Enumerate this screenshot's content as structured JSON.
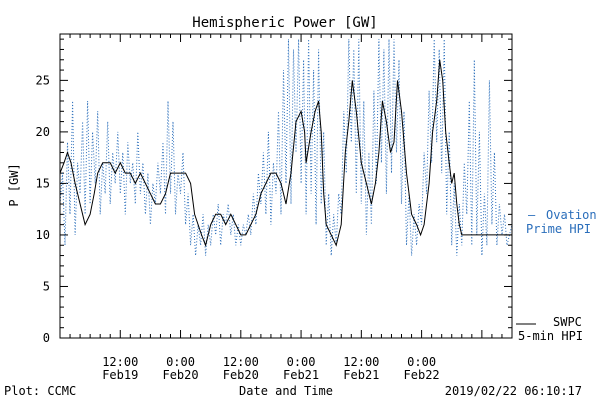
{
  "chart_data": {
    "type": "line",
    "title": "Hemispheric Power [GW]",
    "ylabel": "P [GW]",
    "xlabel": "Date and Time",
    "ylim": [
      0,
      29.5
    ],
    "yticks": [
      0,
      5,
      10,
      15,
      20,
      25
    ],
    "xlim_hours": [
      0,
      90
    ],
    "xticks": [
      {
        "hour": 12,
        "time": "12:00",
        "date": "Feb19"
      },
      {
        "hour": 24,
        "time": "0:00",
        "date": "Feb20"
      },
      {
        "hour": 36,
        "time": "12:00",
        "date": "Feb20"
      },
      {
        "hour": 48,
        "time": "0:00",
        "date": "Feb21"
      },
      {
        "hour": 60,
        "time": "12:00",
        "date": "Feb21"
      },
      {
        "hour": 72,
        "time": "0:00",
        "date": "Feb22"
      }
    ],
    "series": [
      {
        "name": "SWPC 5-min HPI",
        "label_line1": "SWPC",
        "label_line2": "5-min HPI",
        "color": "#000000",
        "style": "solid",
        "points": [
          [
            0,
            16
          ],
          [
            0.8,
            17
          ],
          [
            1.5,
            18
          ],
          [
            2.2,
            17
          ],
          [
            3,
            15
          ],
          [
            4,
            13
          ],
          [
            5,
            11
          ],
          [
            6,
            12
          ],
          [
            6.8,
            14
          ],
          [
            7.5,
            16
          ],
          [
            8.5,
            17
          ],
          [
            10,
            17
          ],
          [
            11,
            16
          ],
          [
            12,
            17
          ],
          [
            13,
            16
          ],
          [
            14,
            16
          ],
          [
            15,
            15
          ],
          [
            16,
            16
          ],
          [
            17,
            15
          ],
          [
            18,
            14
          ],
          [
            19,
            13
          ],
          [
            20,
            13
          ],
          [
            21,
            14
          ],
          [
            22,
            16
          ],
          [
            23,
            16
          ],
          [
            24,
            16
          ],
          [
            25,
            16
          ],
          [
            26,
            15
          ],
          [
            26.8,
            12
          ],
          [
            27.5,
            11
          ],
          [
            28.2,
            10
          ],
          [
            29,
            9
          ],
          [
            30,
            11
          ],
          [
            31,
            12
          ],
          [
            32,
            12
          ],
          [
            33,
            11
          ],
          [
            34,
            12
          ],
          [
            35,
            11
          ],
          [
            36,
            10
          ],
          [
            37,
            10
          ],
          [
            38,
            11
          ],
          [
            39,
            12
          ],
          [
            40,
            14
          ],
          [
            41,
            15
          ],
          [
            42,
            16
          ],
          [
            43,
            16
          ],
          [
            44,
            15
          ],
          [
            45,
            13
          ],
          [
            46,
            16
          ],
          [
            47,
            21
          ],
          [
            48,
            22
          ],
          [
            48.7,
            20
          ],
          [
            49,
            17
          ],
          [
            50,
            20
          ],
          [
            50.8,
            22
          ],
          [
            51.5,
            23
          ],
          [
            52,
            20
          ],
          [
            52.5,
            14
          ],
          [
            53,
            11
          ],
          [
            54,
            10
          ],
          [
            55,
            9
          ],
          [
            56,
            11
          ],
          [
            56.8,
            18
          ],
          [
            57.5,
            21
          ],
          [
            58.2,
            25
          ],
          [
            59,
            22
          ],
          [
            60,
            17
          ],
          [
            61,
            15
          ],
          [
            62,
            13
          ],
          [
            62.8,
            15
          ],
          [
            63.5,
            18
          ],
          [
            64.2,
            23
          ],
          [
            65,
            21
          ],
          [
            65.8,
            18
          ],
          [
            66.5,
            19
          ],
          [
            67.2,
            25
          ],
          [
            68,
            22
          ],
          [
            69,
            16
          ],
          [
            70,
            12
          ],
          [
            71,
            11
          ],
          [
            71.8,
            10
          ],
          [
            72.5,
            11
          ],
          [
            73.5,
            15
          ],
          [
            74.2,
            20
          ],
          [
            75,
            23
          ],
          [
            75.6,
            27
          ],
          [
            76.2,
            25
          ],
          [
            76.8,
            20
          ],
          [
            77.5,
            17
          ],
          [
            78,
            15
          ],
          [
            78.5,
            16
          ],
          [
            79,
            13
          ],
          [
            79.5,
            11
          ],
          [
            80,
            10
          ],
          [
            81,
            10
          ],
          [
            84,
            10
          ],
          [
            90,
            10
          ]
        ]
      },
      {
        "name": "Ovation Prime HPI",
        "label_line1": "Ovation",
        "label_line2": "Prime HPI",
        "color": "#2a6ebb",
        "style": "dotted",
        "points": [
          [
            0,
            13
          ],
          [
            0.5,
            16
          ],
          [
            1,
            9
          ],
          [
            1.5,
            19
          ],
          [
            2,
            12
          ],
          [
            2.5,
            23
          ],
          [
            3,
            10
          ],
          [
            3.5,
            17
          ],
          [
            4,
            14
          ],
          [
            4.5,
            21
          ],
          [
            5,
            12
          ],
          [
            5.5,
            23
          ],
          [
            6,
            13
          ],
          [
            6.5,
            20
          ],
          [
            7,
            15
          ],
          [
            7.5,
            22
          ],
          [
            8,
            12
          ],
          [
            8.5,
            17
          ],
          [
            9,
            14
          ],
          [
            9.5,
            21
          ],
          [
            10,
            13
          ],
          [
            10.5,
            18
          ],
          [
            11,
            15
          ],
          [
            11.5,
            20
          ],
          [
            12,
            14
          ],
          [
            12.5,
            18
          ],
          [
            13,
            12
          ],
          [
            13.5,
            19
          ],
          [
            14,
            15
          ],
          [
            14.5,
            17
          ],
          [
            15,
            13
          ],
          [
            15.5,
            20
          ],
          [
            16,
            14
          ],
          [
            16.5,
            17
          ],
          [
            17,
            12
          ],
          [
            17.5,
            16
          ],
          [
            18,
            11
          ],
          [
            18.5,
            15
          ],
          [
            19,
            13
          ],
          [
            19.5,
            17
          ],
          [
            20,
            14
          ],
          [
            20.5,
            19
          ],
          [
            21,
            12
          ],
          [
            21.5,
            23
          ],
          [
            22,
            14
          ],
          [
            22.5,
            21
          ],
          [
            23,
            12
          ],
          [
            23.5,
            16
          ],
          [
            24,
            14
          ],
          [
            24.5,
            18
          ],
          [
            25,
            11
          ],
          [
            25.5,
            14
          ],
          [
            26,
            9
          ],
          [
            26.5,
            12
          ],
          [
            27,
            8
          ],
          [
            27.5,
            11
          ],
          [
            28,
            9
          ],
          [
            28.5,
            12
          ],
          [
            29,
            8
          ],
          [
            29.5,
            11
          ],
          [
            30,
            9
          ],
          [
            30.5,
            12
          ],
          [
            31,
            10
          ],
          [
            31.5,
            13
          ],
          [
            32,
            9
          ],
          [
            32.5,
            12
          ],
          [
            33,
            11
          ],
          [
            33.5,
            13
          ],
          [
            34,
            10
          ],
          [
            34.5,
            12
          ],
          [
            35,
            9
          ],
          [
            35.5,
            11
          ],
          [
            36,
            9
          ],
          [
            36.5,
            11
          ],
          [
            37,
            10
          ],
          [
            37.5,
            12
          ],
          [
            38,
            10
          ],
          [
            38.5,
            14
          ],
          [
            39,
            11
          ],
          [
            39.5,
            16
          ],
          [
            40,
            13
          ],
          [
            40.5,
            18
          ],
          [
            41,
            12
          ],
          [
            41.5,
            20
          ],
          [
            42,
            11
          ],
          [
            42.5,
            17
          ],
          [
            43,
            14
          ],
          [
            43.5,
            22
          ],
          [
            44,
            12
          ],
          [
            44.5,
            26
          ],
          [
            45,
            15
          ],
          [
            45.5,
            29
          ],
          [
            46,
            13
          ],
          [
            46.5,
            28
          ],
          [
            47,
            18
          ],
          [
            47.5,
            29
          ],
          [
            48,
            15
          ],
          [
            48.5,
            27
          ],
          [
            49,
            12
          ],
          [
            49.5,
            29
          ],
          [
            50,
            14
          ],
          [
            50.5,
            26
          ],
          [
            51,
            11
          ],
          [
            51.5,
            28
          ],
          [
            52,
            13
          ],
          [
            52.5,
            20
          ],
          [
            53,
            9
          ],
          [
            53.5,
            14
          ],
          [
            54,
            8
          ],
          [
            54.5,
            12
          ],
          [
            55,
            9
          ],
          [
            55.5,
            14
          ],
          [
            56,
            12
          ],
          [
            56.5,
            22
          ],
          [
            57,
            16
          ],
          [
            57.5,
            29
          ],
          [
            58,
            19
          ],
          [
            58.5,
            28
          ],
          [
            59,
            14
          ],
          [
            59.5,
            29
          ],
          [
            60,
            13
          ],
          [
            60.5,
            23
          ],
          [
            61,
            10
          ],
          [
            61.5,
            18
          ],
          [
            62,
            11
          ],
          [
            62.5,
            24
          ],
          [
            63,
            15
          ],
          [
            63.5,
            29
          ],
          [
            64,
            17
          ],
          [
            64.5,
            28
          ],
          [
            65,
            14
          ],
          [
            65.5,
            29
          ],
          [
            66,
            16
          ],
          [
            66.5,
            29
          ],
          [
            67,
            18
          ],
          [
            67.5,
            27
          ],
          [
            68,
            13
          ],
          [
            68.5,
            22
          ],
          [
            69,
            9
          ],
          [
            69.5,
            14
          ],
          [
            70,
            8
          ],
          [
            70.5,
            12
          ],
          [
            71,
            9
          ],
          [
            71.5,
            13
          ],
          [
            72,
            11
          ],
          [
            72.5,
            18
          ],
          [
            73,
            14
          ],
          [
            73.5,
            24
          ],
          [
            74,
            17
          ],
          [
            74.5,
            29
          ],
          [
            75,
            19
          ],
          [
            75.5,
            28
          ],
          [
            76,
            16
          ],
          [
            76.5,
            29
          ],
          [
            77,
            12
          ],
          [
            77.5,
            20
          ],
          [
            78,
            9
          ],
          [
            78.5,
            15
          ],
          [
            79,
            8
          ],
          [
            79.5,
            13
          ],
          [
            80,
            9
          ],
          [
            80.5,
            17
          ],
          [
            81,
            12
          ],
          [
            81.5,
            23
          ],
          [
            82,
            9
          ],
          [
            82.5,
            27
          ],
          [
            83,
            10
          ],
          [
            83.5,
            20
          ],
          [
            84,
            8
          ],
          [
            84.5,
            14
          ],
          [
            85,
            9
          ],
          [
            85.5,
            25
          ],
          [
            86,
            11
          ],
          [
            86.5,
            18
          ],
          [
            87,
            9
          ],
          [
            87.5,
            13
          ],
          [
            88,
            10
          ],
          [
            88.5,
            12
          ],
          [
            89,
            9
          ],
          [
            90,
            11
          ]
        ]
      }
    ],
    "legend_position": "right"
  },
  "footer": {
    "left": "Plot: CCMC",
    "center": "Date and Time",
    "right": "2019/02/22 06:10:17"
  }
}
